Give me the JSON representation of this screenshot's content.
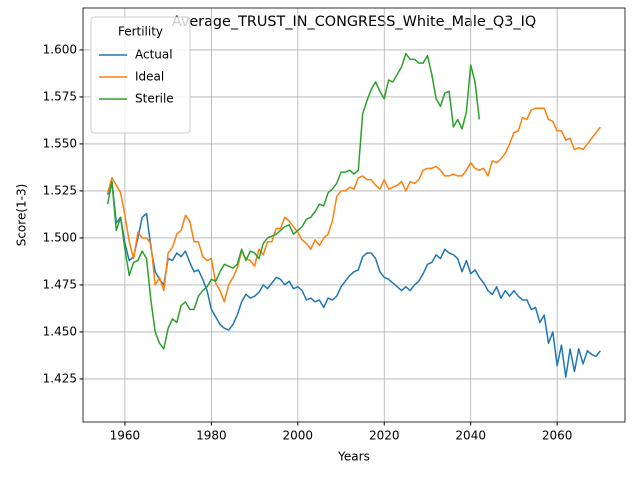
{
  "chart_data": {
    "type": "line",
    "title": "Average_TRUST_IN_CONGRESS_White_Male_Q3_IQ",
    "xlabel": "Years",
    "ylabel": "Score(1-3)",
    "legend_title": "Fertility",
    "legend": "upper left",
    "grid": true,
    "x": [
      1956,
      1957,
      1958,
      1959,
      1960,
      1961,
      1962,
      1963,
      1964,
      1965,
      1966,
      1967,
      1968,
      1969,
      1970,
      1971,
      1972,
      1973,
      1974,
      1975,
      1976,
      1977,
      1978,
      1979,
      1980,
      1981,
      1982,
      1983,
      1984,
      1985,
      1986,
      1987,
      1988,
      1989,
      1990,
      1991,
      1992,
      1993,
      1994,
      1995,
      1996,
      1997,
      1998,
      1999,
      2000,
      2001,
      2002,
      2003,
      2004,
      2005,
      2006,
      2007,
      2008,
      2009,
      2010,
      2011,
      2012,
      2013,
      2014,
      2015,
      2016,
      2017,
      2018,
      2019,
      2020,
      2021,
      2022,
      2023,
      2024,
      2025,
      2026,
      2027,
      2028,
      2029,
      2030,
      2031,
      2032,
      2033,
      2034,
      2035,
      2036,
      2037,
      2038,
      2039,
      2040,
      2041,
      2042,
      2043,
      2044,
      2045,
      2046,
      2047,
      2048,
      2049,
      2050,
      2051,
      2052,
      2053,
      2054,
      2055,
      2056,
      2057,
      2058,
      2059,
      2060,
      2061,
      2062,
      2063,
      2064,
      2065,
      2066,
      2067,
      2068,
      2069,
      2070
    ],
    "series": [
      {
        "name": "Actual",
        "color": "#1f77b4",
        "values": [
          1.523,
          1.53,
          1.508,
          1.511,
          1.497,
          1.488,
          1.49,
          1.5,
          1.511,
          1.513,
          1.495,
          1.482,
          1.478,
          1.475,
          1.489,
          1.488,
          1.492,
          1.49,
          1.493,
          1.487,
          1.482,
          1.483,
          1.478,
          1.472,
          1.462,
          1.458,
          1.454,
          1.452,
          1.451,
          1.454,
          1.459,
          1.466,
          1.47,
          1.468,
          1.469,
          1.471,
          1.475,
          1.473,
          1.476,
          1.479,
          1.478,
          1.475,
          1.477,
          1.473,
          1.474,
          1.472,
          1.467,
          1.468,
          1.466,
          1.467,
          1.463,
          1.468,
          1.467,
          1.469,
          1.474,
          1.477,
          1.48,
          1.482,
          1.483,
          1.49,
          1.492,
          1.492,
          1.489,
          1.482,
          1.479,
          1.478,
          1.476,
          1.474,
          1.472,
          1.474,
          1.472,
          1.475,
          1.477,
          1.481,
          1.486,
          1.487,
          1.491,
          1.489,
          1.494,
          1.492,
          1.491,
          1.489,
          1.482,
          1.488,
          1.481,
          1.483,
          1.479,
          1.476,
          1.472,
          1.47,
          1.474,
          1.468,
          1.472,
          1.469,
          1.472,
          1.469,
          1.467,
          1.467,
          1.462,
          1.463,
          1.455,
          1.459,
          1.444,
          1.45,
          1.432,
          1.443,
          1.426,
          1.441,
          1.429,
          1.441,
          1.433,
          1.44,
          1.438,
          1.437,
          1.44
        ]
      },
      {
        "name": "Ideal",
        "color": "#ff7f0e",
        "values": [
          1.524,
          1.532,
          1.528,
          1.524,
          1.512,
          1.498,
          1.489,
          1.503,
          1.5,
          1.5,
          1.497,
          1.475,
          1.479,
          1.472,
          1.492,
          1.495,
          1.502,
          1.504,
          1.512,
          1.509,
          1.498,
          1.498,
          1.49,
          1.488,
          1.489,
          1.476,
          1.472,
          1.466,
          1.475,
          1.479,
          1.484,
          1.493,
          1.489,
          1.488,
          1.485,
          1.494,
          1.491,
          1.498,
          1.498,
          1.505,
          1.505,
          1.511,
          1.509,
          1.506,
          1.503,
          1.499,
          1.497,
          1.494,
          1.499,
          1.496,
          1.5,
          1.502,
          1.509,
          1.522,
          1.525,
          1.525,
          1.527,
          1.526,
          1.532,
          1.533,
          1.531,
          1.531,
          1.528,
          1.526,
          1.531,
          1.526,
          1.527,
          1.528,
          1.53,
          1.525,
          1.53,
          1.529,
          1.531,
          1.536,
          1.537,
          1.537,
          1.538,
          1.536,
          1.533,
          1.533,
          1.534,
          1.533,
          1.533,
          1.536,
          1.54,
          1.537,
          1.536,
          1.537,
          1.533,
          1.541,
          1.54,
          1.542,
          1.545,
          1.55,
          1.556,
          1.557,
          1.564,
          1.563,
          1.568,
          1.569,
          1.569,
          1.569,
          1.563,
          1.562,
          1.557,
          1.557,
          1.552,
          1.553,
          1.547,
          1.548,
          1.547,
          1.55,
          1.553,
          1.556,
          1.559
        ]
      },
      {
        "name": "Sterile",
        "color": "#2ca02c",
        "values": [
          1.518,
          1.53,
          1.504,
          1.511,
          1.494,
          1.48,
          1.487,
          1.488,
          1.493,
          1.489,
          1.467,
          1.45,
          1.444,
          1.441,
          1.452,
          1.457,
          1.455,
          1.464,
          1.466,
          1.462,
          1.462,
          1.469,
          1.472,
          1.474,
          1.478,
          1.477,
          1.482,
          1.486,
          1.485,
          1.484,
          1.486,
          1.494,
          1.488,
          1.493,
          1.492,
          1.489,
          1.497,
          1.5,
          1.501,
          1.502,
          1.504,
          1.506,
          1.507,
          1.502,
          1.504,
          1.506,
          1.51,
          1.511,
          1.514,
          1.518,
          1.517,
          1.524,
          1.526,
          1.529,
          1.535,
          1.535,
          1.536,
          1.534,
          1.536,
          1.566,
          1.573,
          1.579,
          1.583,
          1.578,
          1.574,
          1.584,
          1.583,
          1.587,
          1.591,
          1.598,
          1.595,
          1.595,
          1.593,
          1.593,
          1.597,
          1.587,
          1.574,
          1.57,
          1.577,
          1.578,
          1.559,
          1.563,
          1.558,
          1.567,
          1.592,
          1.583,
          1.563,
          null,
          null,
          null,
          null,
          null,
          null,
          null,
          null,
          null,
          null,
          null,
          null,
          null,
          null,
          null,
          null,
          null,
          null,
          null,
          null,
          null,
          null,
          null,
          null,
          null,
          null,
          null,
          null
        ]
      }
    ],
    "xlim": [
      1950.3,
      2075.7
    ],
    "xticks": [
      1960,
      1980,
      2000,
      2020,
      2040,
      2060
    ],
    "ylim": [
      1.4021,
      1.6223
    ],
    "yticks": [
      {
        "value": 1.425,
        "label": "1.425"
      },
      {
        "value": 1.45,
        "label": "1.450"
      },
      {
        "value": 1.475,
        "label": "1.475"
      },
      {
        "value": 1.5,
        "label": "1.500"
      },
      {
        "value": 1.525,
        "label": "1.525"
      },
      {
        "value": 1.55,
        "label": "1.550"
      },
      {
        "value": 1.575,
        "label": "1.575"
      },
      {
        "value": 1.6,
        "label": "1.600"
      }
    ]
  }
}
